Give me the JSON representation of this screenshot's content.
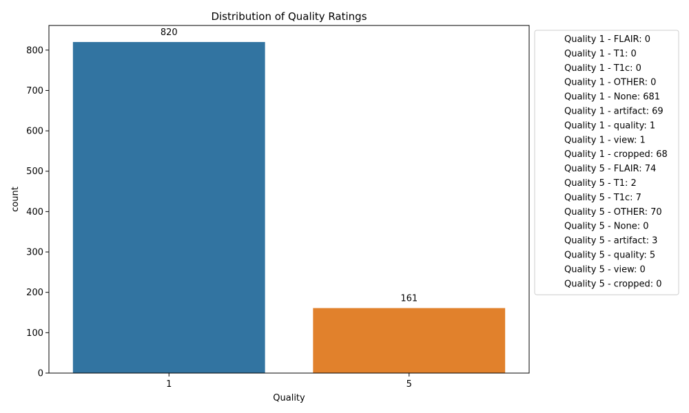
{
  "chart_data": {
    "type": "bar",
    "title": "Distribution of Quality Ratings",
    "xlabel": "Quality",
    "ylabel": "count",
    "categories": [
      "1",
      "5"
    ],
    "values": [
      820,
      161
    ],
    "data_labels": [
      "820",
      "161"
    ],
    "bar_colors": [
      "#3274a1",
      "#e1812c"
    ],
    "ylim": [
      0,
      861
    ],
    "yticks": [
      0,
      100,
      200,
      300,
      400,
      500,
      600,
      700,
      800
    ],
    "grid": false,
    "legend_position": "outside-right",
    "legend": [
      "Quality 1 - FLAIR: 0",
      "Quality 1 - T1: 0",
      "Quality 1 - T1c: 0",
      "Quality 1 - OTHER: 0",
      "Quality 1 - None: 681",
      "Quality 1 - artifact: 69",
      "Quality 1 - quality: 1",
      "Quality 1 - view: 1",
      "Quality 1 - cropped: 68",
      "Quality 5 - FLAIR: 74",
      "Quality 5 - T1: 2",
      "Quality 5 - T1c: 7",
      "Quality 5 - OTHER: 70",
      "Quality 5 - None: 0",
      "Quality 5 - artifact: 3",
      "Quality 5 - quality: 5",
      "Quality 5 - view: 0",
      "Quality 5 - cropped: 0"
    ]
  }
}
